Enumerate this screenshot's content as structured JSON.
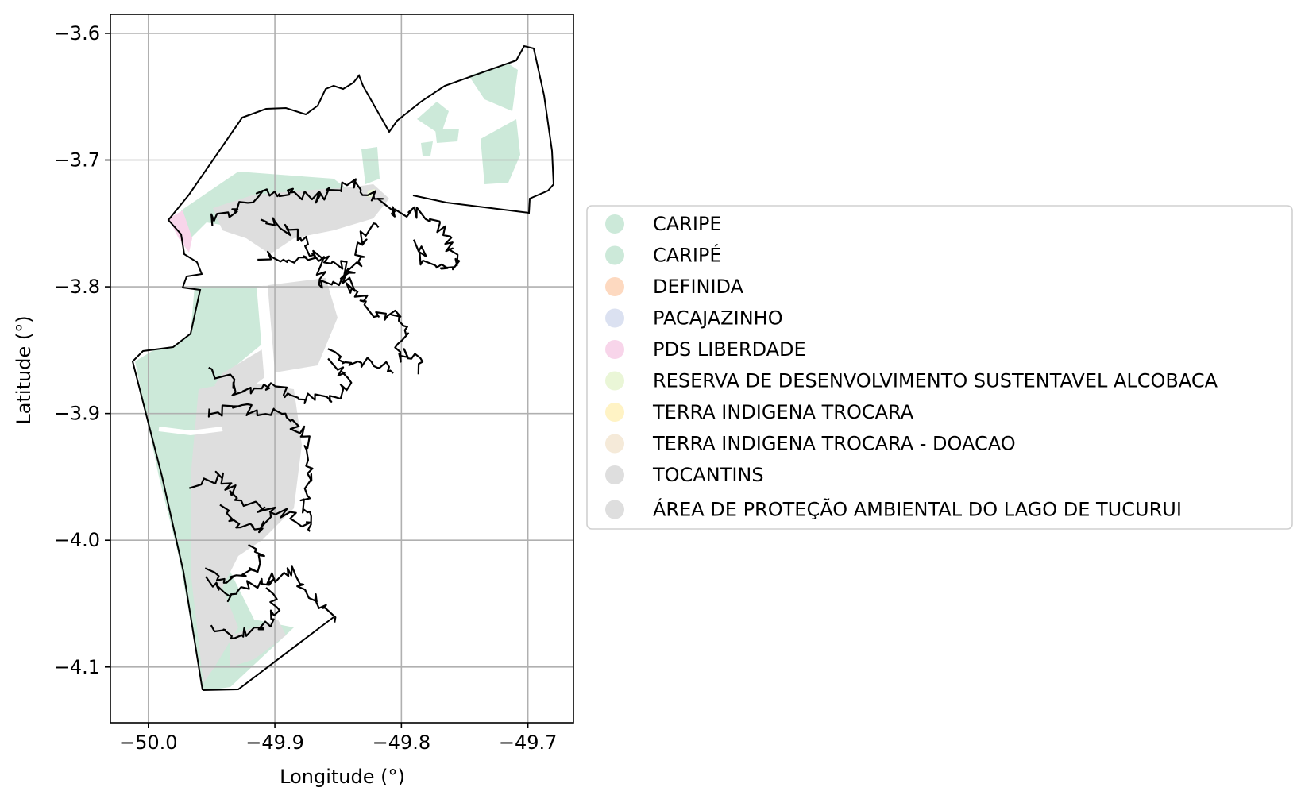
{
  "map": {
    "xlabel": "Longitude (°)",
    "ylabel": "Latitude (°)",
    "xlim": [
      -50.03,
      -49.664
    ],
    "ylim": [
      -4.144,
      -3.585
    ],
    "grid": true,
    "legend_position": "right of map, vertically centered",
    "x_ticks": [
      {
        "value": -50.0,
        "label": "−50.0"
      },
      {
        "value": -49.9,
        "label": "−49.9"
      },
      {
        "value": -49.8,
        "label": "−49.8"
      },
      {
        "value": -49.7,
        "label": "−49.7"
      }
    ],
    "y_ticks": [
      {
        "value": -3.6,
        "label": "−3.6"
      },
      {
        "value": -3.7,
        "label": "−3.7"
      },
      {
        "value": -3.8,
        "label": "−3.8"
      },
      {
        "value": -3.9,
        "label": "−3.9"
      },
      {
        "value": -4.0,
        "label": "−4.0"
      },
      {
        "value": -4.1,
        "label": "−4.1"
      }
    ],
    "categories": [
      {
        "label": "CARIPE",
        "color": "#cce9d9"
      },
      {
        "label": "CARIPÉ",
        "color": "#cce9d9"
      },
      {
        "label": "DEFINIDA",
        "color": "#fdd9c0"
      },
      {
        "label": "PACAJAZINHO",
        "color": "#dbe1f1"
      },
      {
        "label": "PDS LIBERDADE",
        "color": "#f8d5ea"
      },
      {
        "label": "RESERVA DE DESENVOLVIMENTO SUSTENTAVEL ALCOBACA",
        "color": "#eaf6d7"
      },
      {
        "label": "TERRA INDIGENA TROCARA",
        "color": "#fff3c5"
      },
      {
        "label": "TERRA INDIGENA TROCARA - DOACAO",
        "color": "#f5ead9"
      },
      {
        "label": "TOCANTINS",
        "color": "#dedede"
      },
      {
        "label": "ÁREA DE PROTEÇÃO AMBIENTAL DO LAGO DE TUCURUI",
        "color": "#dedede"
      }
    ]
  }
}
